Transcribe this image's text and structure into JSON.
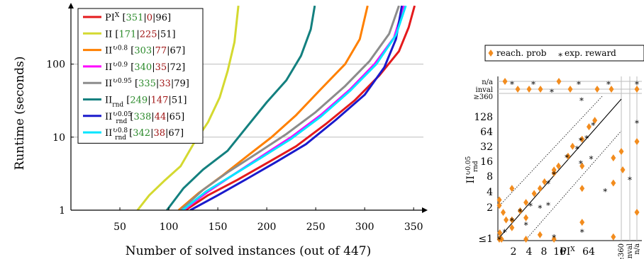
{
  "chart_data": [
    {
      "type": "line",
      "xlabel": "Number of solved instances (out of 447)",
      "ylabel": "Runtime (seconds)",
      "x_ticks": [
        "50",
        "100",
        "150",
        "200",
        "250",
        "300",
        "350"
      ],
      "y_ticks": [
        "1",
        "10",
        "100"
      ],
      "xlim": [
        0,
        360
      ],
      "ylim_log10": [
        0,
        2.8
      ],
      "y_scale": "log",
      "grid": "horizontal",
      "legend_position": "top-left",
      "series": [
        {
          "name": "PI^X",
          "name_base": "PI",
          "name_sup": "X",
          "name_sub": "",
          "solved": "351",
          "unsolved": "0",
          "other": "96",
          "color": "#e41a1c",
          "points": [
            [
              117,
              1
            ],
            [
              140,
              1.6
            ],
            [
              170,
              2.6
            ],
            [
              200,
              4.4
            ],
            [
              230,
              7.5
            ],
            [
              260,
              15
            ],
            [
              290,
              32
            ],
            [
              315,
              70
            ],
            [
              335,
              150
            ],
            [
              345,
              320
            ],
            [
              351,
              630
            ]
          ]
        },
        {
          "name": "II",
          "name_base": "II",
          "name_sup": "",
          "name_sub": "",
          "solved": "171",
          "unsolved": "225",
          "other": "51",
          "color": "#d4d930",
          "points": [
            [
              68,
              1
            ],
            [
              80,
              1.6
            ],
            [
              95,
              2.5
            ],
            [
              112,
              4
            ],
            [
              125,
              8
            ],
            [
              140,
              16
            ],
            [
              152,
              35
            ],
            [
              160,
              80
            ],
            [
              167,
              200
            ],
            [
              171,
              630
            ]
          ]
        },
        {
          "name": "II^0.8",
          "name_base": "II",
          "name_sup": "↻0.8",
          "name_sub": "",
          "solved": "303",
          "unsolved": "77",
          "other": "67",
          "color": "#ff8000",
          "points": [
            [
              110,
              1
            ],
            [
              130,
              1.7
            ],
            [
              155,
              3
            ],
            [
              180,
              5.5
            ],
            [
              205,
              10
            ],
            [
              230,
              20
            ],
            [
              255,
              45
            ],
            [
              280,
              100
            ],
            [
              295,
              220
            ],
            [
              303,
              630
            ]
          ]
        },
        {
          "name": "II^0.9",
          "name_base": "II",
          "name_sup": "↻0.9",
          "name_sub": "",
          "solved": "340",
          "unsolved": "35",
          "other": "72",
          "color": "#ff00ff",
          "points": [
            [
              115,
              1
            ],
            [
              140,
              1.8
            ],
            [
              165,
              3
            ],
            [
              195,
              5.5
            ],
            [
              225,
              10
            ],
            [
              255,
              20
            ],
            [
              285,
              45
            ],
            [
              310,
              100
            ],
            [
              330,
              230
            ],
            [
              340,
              630
            ]
          ]
        },
        {
          "name": "II^0.95",
          "name_base": "II",
          "name_sup": "↻0.95",
          "name_sub": "",
          "solved": "335",
          "unsolved": "33",
          "other": "79",
          "color": "#8c8c8c",
          "points": [
            [
              112,
              1
            ],
            [
              135,
              1.9
            ],
            [
              160,
              3.3
            ],
            [
              190,
              6
            ],
            [
              220,
              11
            ],
            [
              250,
              22
            ],
            [
              280,
              50
            ],
            [
              305,
              110
            ],
            [
              325,
              260
            ],
            [
              335,
              630
            ]
          ]
        },
        {
          "name": "II_rnd",
          "name_base": "II",
          "name_sup": "",
          "name_sub": "rnd",
          "solved": "249",
          "unsolved": "147",
          "other": "51",
          "color": "#13807f",
          "points": [
            [
              98,
              1
            ],
            [
              115,
              2
            ],
            [
              135,
              3.6
            ],
            [
              160,
              6.5
            ],
            [
              180,
              14
            ],
            [
              200,
              30
            ],
            [
              220,
              60
            ],
            [
              235,
              130
            ],
            [
              245,
              300
            ],
            [
              249,
              630
            ]
          ]
        },
        {
          "name": "II_rnd^0.05",
          "name_base": "II",
          "name_sup": "↻0.05",
          "name_sub": "rnd",
          "solved": "338",
          "unsolved": "44",
          "other": "65",
          "color": "#1a1acc",
          "points": [
            [
              122,
              1
            ],
            [
              150,
              1.6
            ],
            [
              180,
              2.7
            ],
            [
              210,
              4.6
            ],
            [
              240,
              8
            ],
            [
              270,
              17
            ],
            [
              300,
              38
            ],
            [
              320,
              90
            ],
            [
              332,
              220
            ],
            [
              338,
              630
            ]
          ]
        },
        {
          "name": "II_rnd^0.8",
          "name_base": "II",
          "name_sup": "↻0.8",
          "name_sub": "rnd",
          "solved": "342",
          "unsolved": "38",
          "other": "67",
          "color": "#00e5ff",
          "points": [
            [
              114,
              1
            ],
            [
              138,
              1.8
            ],
            [
              165,
              3
            ],
            [
              195,
              5.3
            ],
            [
              225,
              9.5
            ],
            [
              255,
              19
            ],
            [
              285,
              43
            ],
            [
              312,
              100
            ],
            [
              332,
              250
            ],
            [
              342,
              630
            ]
          ]
        }
      ]
    },
    {
      "type": "scatter",
      "xlabel": "PI^X",
      "xlabel_base": "PI",
      "xlabel_sup": "X",
      "ylabel": "II_rnd^0.05",
      "ylabel_base": "II",
      "ylabel_sup": "↻0.05",
      "ylabel_sub": "rnd",
      "y_scale": "log",
      "x_scale": "log",
      "y_ticks": [
        "≤1",
        "2",
        "4",
        "8",
        "16",
        "32",
        "64",
        "128",
        "≥360",
        "inval",
        "n/a"
      ],
      "x_ticks": [
        "2",
        "4",
        "8",
        "16",
        "64",
        "≥360",
        "inval",
        "n/a"
      ],
      "legend_position": "top",
      "series": [
        {
          "name": "reach. prob",
          "marker": "diamond",
          "color": "#f28c1e",
          "points": [
            [
              1,
              1
            ],
            [
              1.1,
              1.3
            ],
            [
              1.2,
              1
            ],
            [
              1.5,
              2.2
            ],
            [
              2,
              1.6
            ],
            [
              2,
              2.2
            ],
            [
              3,
              3.2
            ],
            [
              4,
              4.5
            ],
            [
              4,
              2.4
            ],
            [
              6,
              6.5
            ],
            [
              8,
              8
            ],
            [
              10,
              10.5
            ],
            [
              16,
              15
            ],
            [
              16,
              17
            ],
            [
              20,
              20
            ],
            [
              32,
              30
            ],
            [
              40,
              45
            ],
            [
              64,
              60
            ],
            [
              90,
              100
            ],
            [
              120,
              130
            ],
            [
              1,
              4
            ],
            [
              1.3,
              3
            ],
            [
              4,
              1
            ],
            [
              8,
              1.2
            ],
            [
              16,
              1
            ],
            [
              64,
              2
            ],
            [
              64,
              8
            ],
            [
              64,
              20
            ],
            [
              300,
              1.1
            ],
            [
              300,
              10
            ],
            [
              300,
              28
            ],
            [
              1,
              5
            ],
            [
              2,
              8
            ]
          ]
        },
        {
          "name": "exp. reward",
          "marker": "asterisk",
          "color": "#27a327",
          "points": [
            [
              1,
              1.1
            ],
            [
              1.4,
              1.5
            ],
            [
              2,
              2.4
            ],
            [
              3,
              3.5
            ],
            [
              4,
              2
            ],
            [
              5,
              4.4
            ],
            [
              8,
              4
            ],
            [
              12,
              11
            ],
            [
              16,
              16
            ],
            [
              30,
              32
            ],
            [
              50,
              45
            ],
            [
              60,
              64
            ],
            [
              80,
              70
            ],
            [
              110,
              120
            ],
            [
              16,
              1.2
            ],
            [
              64,
              1.5
            ],
            [
              100,
              30
            ],
            [
              60,
              25
            ],
            [
              200,
              8
            ],
            [
              12,
              4.5
            ]
          ]
        }
      ]
    }
  ]
}
